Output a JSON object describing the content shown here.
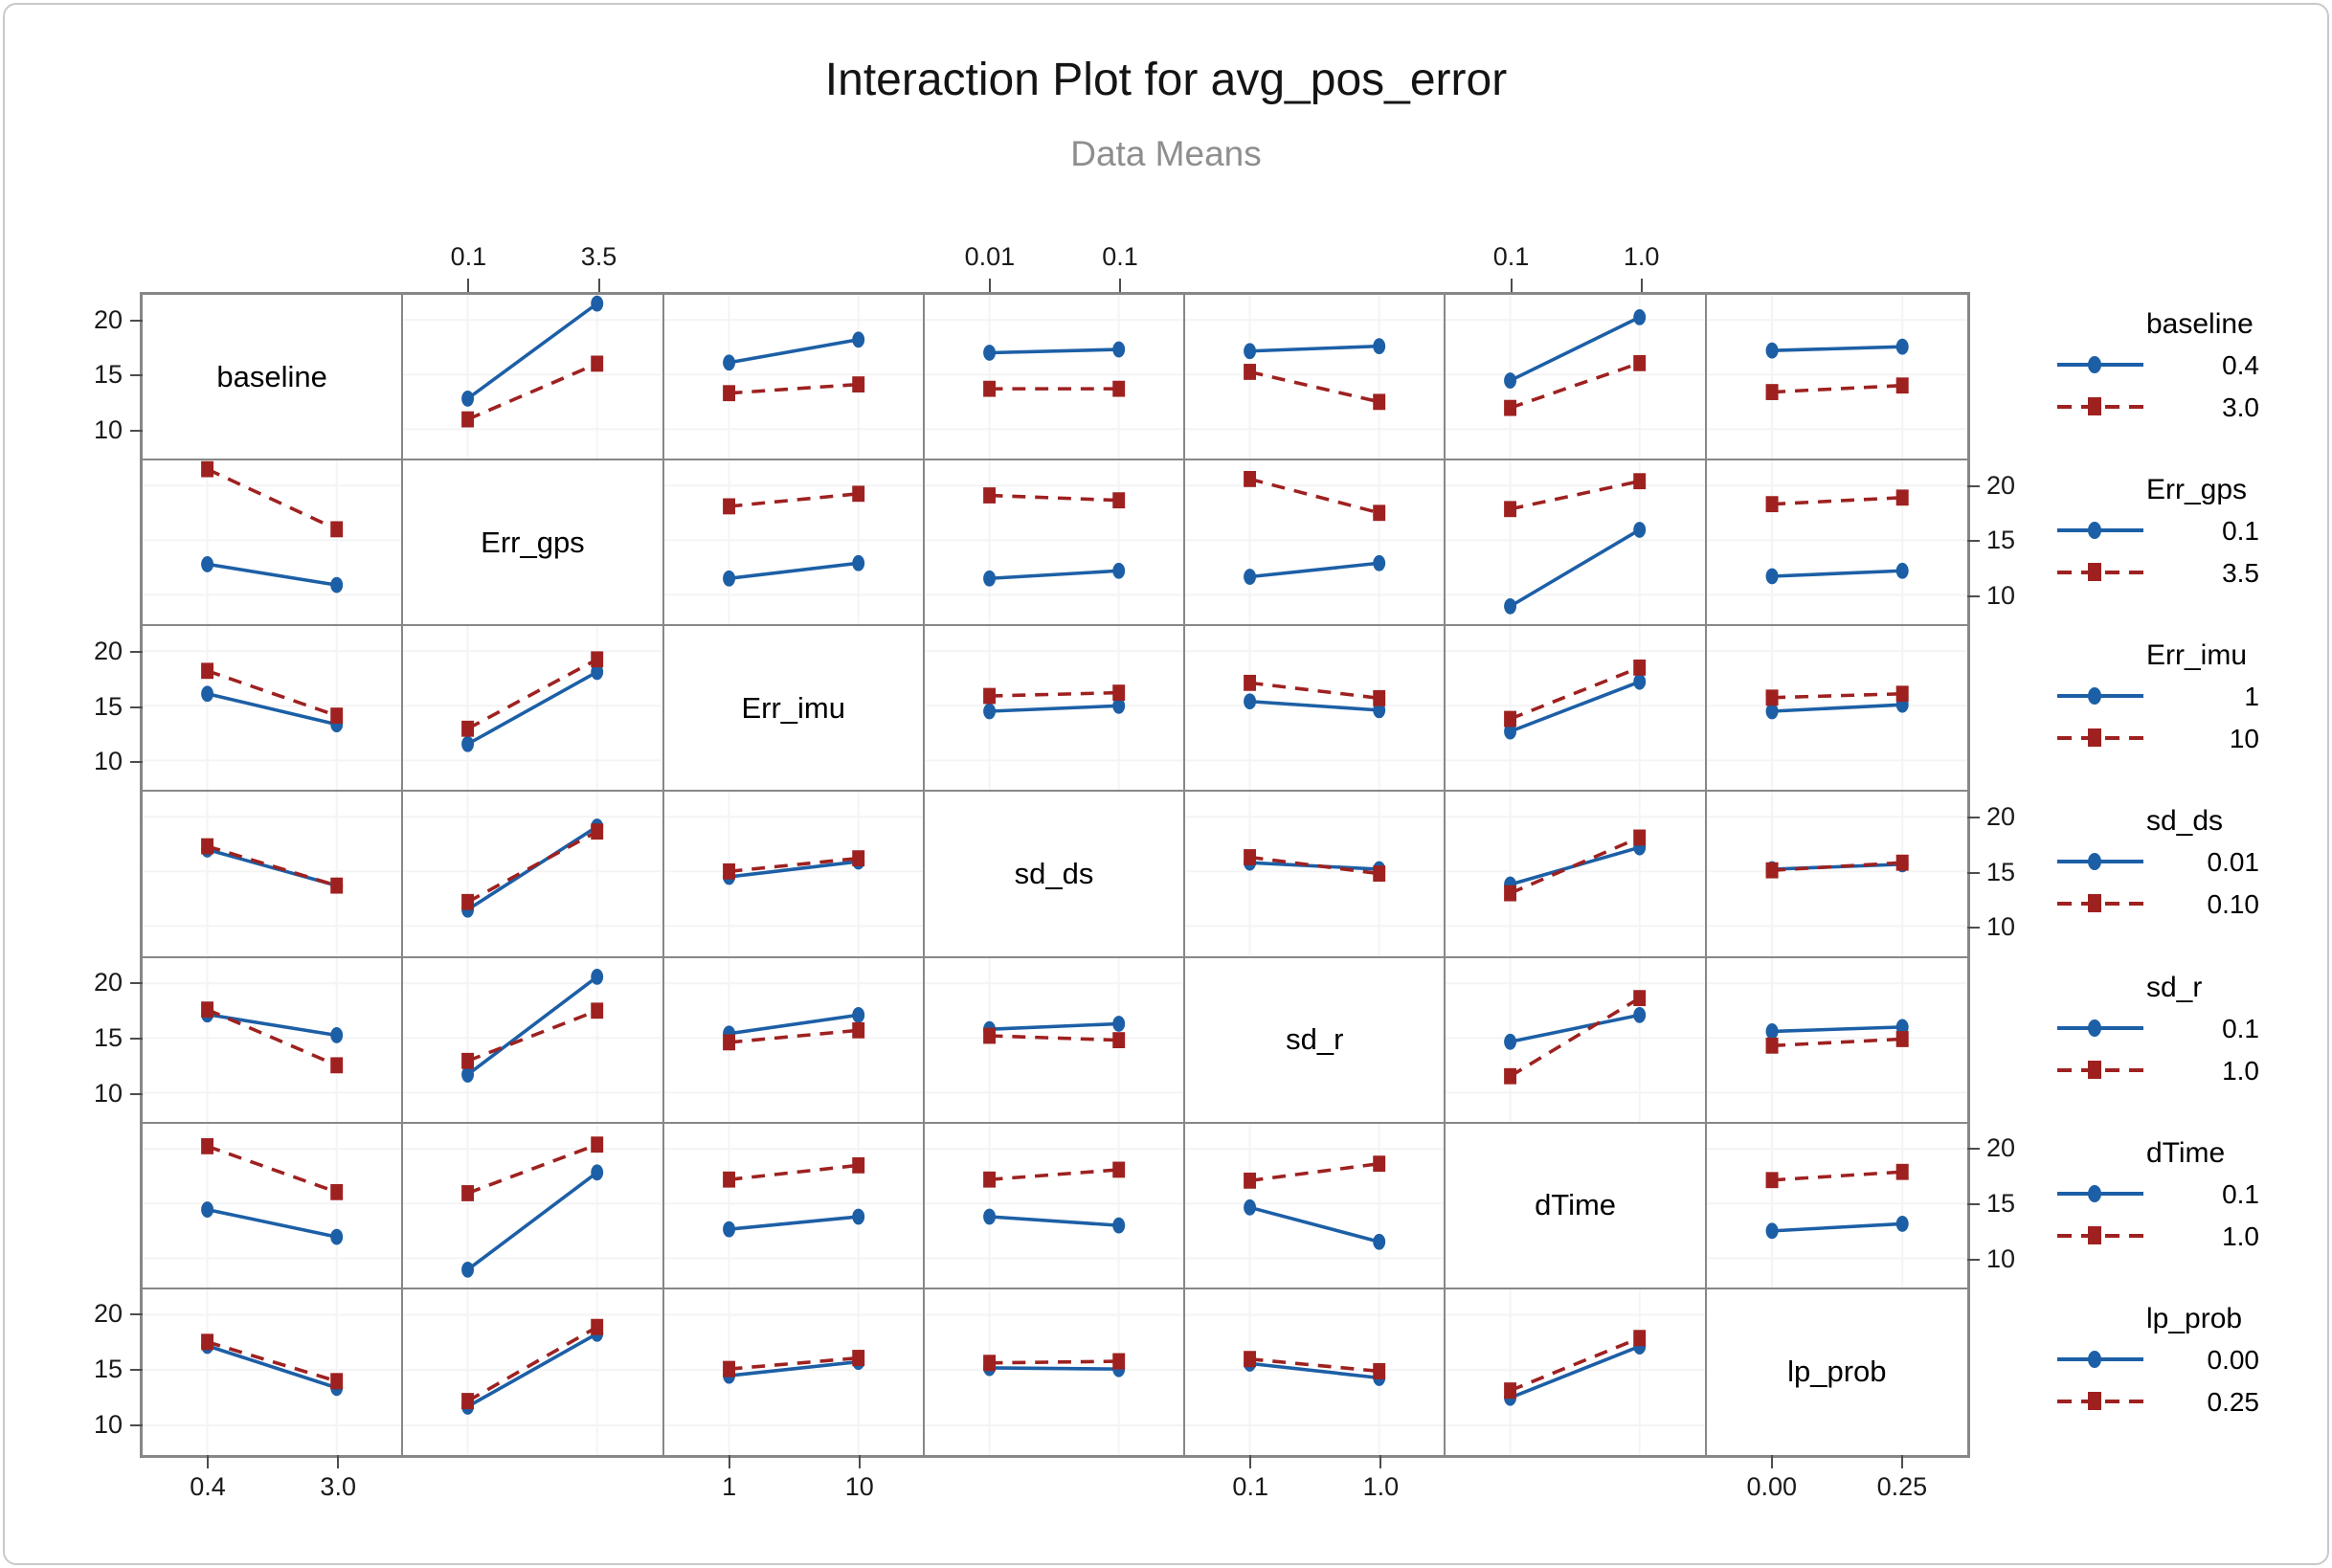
{
  "title": "Interaction Plot for avg_pos_error",
  "subtitle": "Data Means",
  "colors": {
    "line_level1": "#1c5fa6",
    "line_level2": "#9e2120",
    "frame": "#878787",
    "gridline": "#f4f4f4",
    "tick_color": "#4d4d4d",
    "tick_text": "#1a1a1a",
    "subtitle_text": "#8e8e8e"
  },
  "chart_data": {
    "type": "line",
    "subtype": "interaction-plot-matrix",
    "response": "avg_pos_error",
    "y_ticks": [
      20,
      15,
      10
    ],
    "panel_value_range": [
      7.3,
      22.3
    ],
    "x_level_positions": [
      0.25,
      0.75
    ],
    "legend_position": "right",
    "grid": "faint",
    "factors": [
      {
        "name": "baseline",
        "levels": [
          "0.4",
          "3.0"
        ],
        "axis_levels": [
          "0.4",
          "3.0"
        ]
      },
      {
        "name": "Err_gps",
        "levels": [
          "0.1",
          "3.5"
        ],
        "axis_levels": [
          "0.1",
          "3.5"
        ]
      },
      {
        "name": "Err_imu",
        "levels": [
          "1",
          "10"
        ],
        "axis_levels": [
          "1",
          "10"
        ]
      },
      {
        "name": "sd_ds",
        "levels": [
          "0.01",
          "0.10"
        ],
        "axis_levels": [
          "0.01",
          "0.1"
        ]
      },
      {
        "name": "sd_r",
        "levels": [
          "0.1",
          "1.0"
        ],
        "axis_levels": [
          "0.1",
          "1.0"
        ]
      },
      {
        "name": "dTime",
        "levels": [
          "0.1",
          "1.0"
        ],
        "axis_levels": [
          "0.1",
          "1.0"
        ]
      },
      {
        "name": "lp_prob",
        "levels": [
          "0.00",
          "0.25"
        ],
        "axis_levels": [
          "0.00",
          "0.25"
        ]
      }
    ],
    "axis_sides": {
      "top_cols": [
        1,
        3,
        5
      ],
      "bottom_cols": [
        0,
        2,
        4,
        6
      ],
      "left_rows": [
        0,
        2,
        4,
        6
      ],
      "right_rows": [
        1,
        3,
        5
      ]
    },
    "series_style": {
      "level1": {
        "color": "#1c5fa6",
        "line": "solid",
        "marker": "circle"
      },
      "level2": {
        "color": "#9e2120",
        "line": "dashed",
        "marker": "square"
      }
    },
    "pairs": [
      {
        "a": "baseline",
        "b": "Err_gps",
        "means": [
          [
            12.8,
            21.5
          ],
          [
            10.9,
            16.0
          ]
        ]
      },
      {
        "a": "baseline",
        "b": "Err_imu",
        "means": [
          [
            16.1,
            18.2
          ],
          [
            13.3,
            14.1
          ]
        ]
      },
      {
        "a": "baseline",
        "b": "sd_ds",
        "means": [
          [
            17.0,
            17.3
          ],
          [
            13.7,
            13.7
          ]
        ]
      },
      {
        "a": "baseline",
        "b": "sd_r",
        "means": [
          [
            17.15,
            17.6
          ],
          [
            15.25,
            12.5
          ]
        ]
      },
      {
        "a": "baseline",
        "b": "dTime",
        "means": [
          [
            14.45,
            20.25
          ],
          [
            11.95,
            16.05
          ]
        ]
      },
      {
        "a": "baseline",
        "b": "lp_prob",
        "means": [
          [
            17.2,
            17.55
          ],
          [
            13.4,
            14.0
          ]
        ]
      },
      {
        "a": "Err_gps",
        "b": "Err_imu",
        "means": [
          [
            11.5,
            12.9
          ],
          [
            18.1,
            19.25
          ]
        ]
      },
      {
        "a": "Err_gps",
        "b": "sd_ds",
        "means": [
          [
            11.5,
            12.2
          ],
          [
            19.1,
            18.65
          ]
        ]
      },
      {
        "a": "Err_gps",
        "b": "sd_r",
        "means": [
          [
            11.65,
            12.9
          ],
          [
            20.6,
            17.5
          ]
        ]
      },
      {
        "a": "Err_gps",
        "b": "dTime",
        "means": [
          [
            8.95,
            15.95
          ],
          [
            17.85,
            20.4
          ]
        ]
      },
      {
        "a": "Err_gps",
        "b": "lp_prob",
        "means": [
          [
            11.7,
            12.2
          ],
          [
            18.3,
            18.9
          ]
        ]
      },
      {
        "a": "Err_imu",
        "b": "sd_ds",
        "means": [
          [
            14.5,
            15.0
          ],
          [
            15.9,
            16.2
          ]
        ]
      },
      {
        "a": "Err_imu",
        "b": "sd_r",
        "means": [
          [
            15.4,
            14.6
          ],
          [
            17.1,
            15.7
          ]
        ]
      },
      {
        "a": "Err_imu",
        "b": "dTime",
        "means": [
          [
            12.65,
            17.2
          ],
          [
            13.8,
            18.5
          ]
        ]
      },
      {
        "a": "Err_imu",
        "b": "lp_prob",
        "means": [
          [
            14.5,
            15.1
          ],
          [
            15.75,
            16.1
          ]
        ]
      },
      {
        "a": "sd_ds",
        "b": "sd_r",
        "means": [
          [
            15.8,
            15.2
          ],
          [
            16.3,
            14.8
          ]
        ]
      },
      {
        "a": "sd_ds",
        "b": "dTime",
        "means": [
          [
            13.8,
            17.2
          ],
          [
            13.0,
            18.1
          ]
        ]
      },
      {
        "a": "sd_ds",
        "b": "lp_prob",
        "means": [
          [
            15.2,
            15.65
          ],
          [
            15.1,
            15.8
          ]
        ]
      },
      {
        "a": "sd_r",
        "b": "dTime",
        "means": [
          [
            14.65,
            17.1
          ],
          [
            11.5,
            18.65
          ]
        ]
      },
      {
        "a": "sd_r",
        "b": "lp_prob",
        "means": [
          [
            15.6,
            16.0
          ],
          [
            14.3,
            14.9
          ]
        ]
      },
      {
        "a": "dTime",
        "b": "lp_prob",
        "means": [
          [
            12.5,
            13.15
          ],
          [
            17.15,
            17.9
          ]
        ]
      }
    ]
  },
  "legend": {
    "blocks": [
      {
        "title": "baseline",
        "entries": [
          "0.4",
          "3.0"
        ]
      },
      {
        "title": "Err_gps",
        "entries": [
          "0.1",
          "3.5"
        ]
      },
      {
        "title": "Err_imu",
        "entries": [
          "1",
          "10"
        ]
      },
      {
        "title": "sd_ds",
        "entries": [
          "0.01",
          "0.10"
        ]
      },
      {
        "title": "sd_r",
        "entries": [
          "0.1",
          "1.0"
        ]
      },
      {
        "title": "dTime",
        "entries": [
          "0.1",
          "1.0"
        ]
      },
      {
        "title": "lp_prob",
        "entries": [
          "0.00",
          "0.25"
        ]
      }
    ]
  }
}
